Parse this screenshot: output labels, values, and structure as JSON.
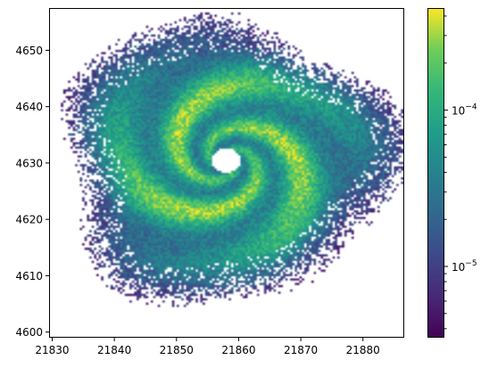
{
  "chart_data": {
    "type": "heatmap",
    "title": "",
    "xlabel": "",
    "ylabel": "",
    "xlim": [
      21829.5,
      21886.5
    ],
    "ylim": [
      4599,
      4657.5
    ],
    "x_ticks": [
      {
        "value": 21830,
        "label": "21830"
      },
      {
        "value": 21840,
        "label": "21840"
      },
      {
        "value": 21850,
        "label": "21850"
      },
      {
        "value": 21860,
        "label": "21860"
      },
      {
        "value": 21870,
        "label": "21870"
      },
      {
        "value": 21880,
        "label": "21880"
      }
    ],
    "y_ticks": [
      {
        "value": 4600,
        "label": "4600"
      },
      {
        "value": 4610,
        "label": "4610"
      },
      {
        "value": 4620,
        "label": "4620"
      },
      {
        "value": 4630,
        "label": "4630"
      },
      {
        "value": 4640,
        "label": "4640"
      },
      {
        "value": 4650,
        "label": "4650"
      }
    ],
    "colorbar": {
      "scale": "log",
      "colormap": "viridis",
      "range": [
        3.5e-06,
        0.00045
      ],
      "ticks": [
        {
          "value": 1e-05,
          "base": "10",
          "exponent": "−5"
        },
        {
          "value": 0.0001,
          "base": "10",
          "exponent": "−4"
        }
      ]
    },
    "spiral": {
      "center": [
        21858,
        4630.5
      ],
      "outer_radius": 26,
      "eye_radius": 2.3,
      "arms": 3,
      "grid": [
        150,
        150
      ]
    },
    "grid": false,
    "legend": "none"
  }
}
